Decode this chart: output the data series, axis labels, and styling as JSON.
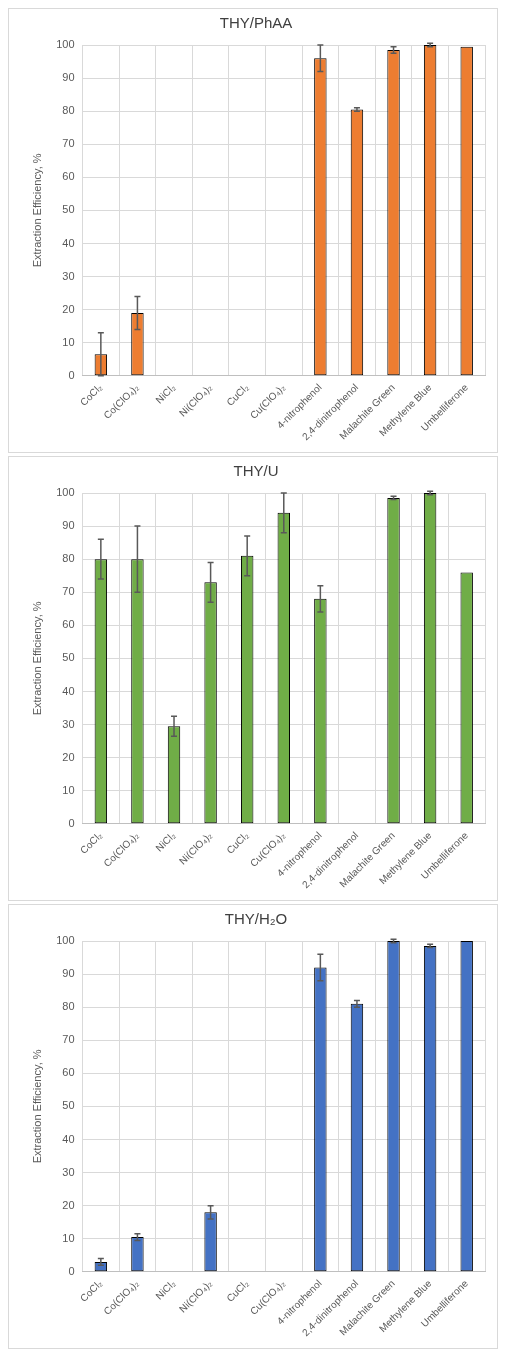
{
  "chart_data": [
    {
      "type": "bar",
      "title": "THY/PhAA",
      "ylabel": "Extraction Efficiency, %",
      "categories": [
        "CoCl₂",
        "Co(ClO₄)₂",
        "NiCl₂",
        "Ni(ClO₄)₂",
        "CuCl₂",
        "Cu(ClO₄)₂",
        "4-nitrophenol",
        "2,4-dinitrophenol",
        "Malachite Green",
        "Methylene Blue",
        "Umbelliferone"
      ],
      "values": [
        6.5,
        19,
        null,
        null,
        null,
        null,
        96,
        80.5,
        98.5,
        100,
        99.5
      ],
      "errors": [
        6.5,
        5,
        null,
        null,
        null,
        null,
        4,
        0.5,
        1,
        0.5,
        null
      ],
      "color": "#ed7d31",
      "ylim": [
        0,
        100
      ],
      "yticks": [
        0,
        10,
        20,
        30,
        40,
        50,
        60,
        70,
        80,
        90,
        100
      ],
      "grid": true
    },
    {
      "type": "bar",
      "title": "THY/U",
      "ylabel": "Extraction Efficiency, %",
      "categories": [
        "CoCl₂",
        "Co(ClO₄)₂",
        "NiCl₂",
        "Ni(ClO₄)₂",
        "CuCl₂",
        "Cu(ClO₄)₂",
        "4-nitrophenol",
        "2,4-dinitrophenol",
        "Malachite Green",
        "Methylene Blue",
        "Umbelliferone"
      ],
      "values": [
        80,
        80,
        29.5,
        73,
        81,
        94,
        68,
        0,
        98.5,
        100,
        76
      ],
      "errors": [
        6,
        10,
        3,
        6,
        6,
        6,
        4,
        null,
        0.5,
        0.5,
        null
      ],
      "color": "#70ad47",
      "ylim": [
        0,
        100
      ],
      "yticks": [
        0,
        10,
        20,
        30,
        40,
        50,
        60,
        70,
        80,
        90,
        100
      ],
      "grid": true
    },
    {
      "type": "bar",
      "title": "THY/H₂O",
      "ylabel": "Extraction Efficiency, %",
      "categories": [
        "CoCl₂",
        "Co(ClO₄)₂",
        "NiCl₂",
        "Ni(ClO₄)₂",
        "CuCl₂",
        "Cu(ClO₄)₂",
        "4-nitrophenol",
        "2,4-dinitrophenol",
        "Malachite Green",
        "Methylene Blue",
        "Umbelliferone"
      ],
      "values": [
        3,
        10.5,
        null,
        18,
        null,
        null,
        92,
        81,
        100,
        98.5,
        100
      ],
      "errors": [
        1,
        1,
        null,
        2,
        null,
        null,
        4,
        1,
        0.5,
        0.5,
        null
      ],
      "color": "#4472c4",
      "ylim": [
        0,
        100
      ],
      "yticks": [
        0,
        10,
        20,
        30,
        40,
        50,
        60,
        70,
        80,
        90,
        100
      ],
      "grid": true
    }
  ]
}
